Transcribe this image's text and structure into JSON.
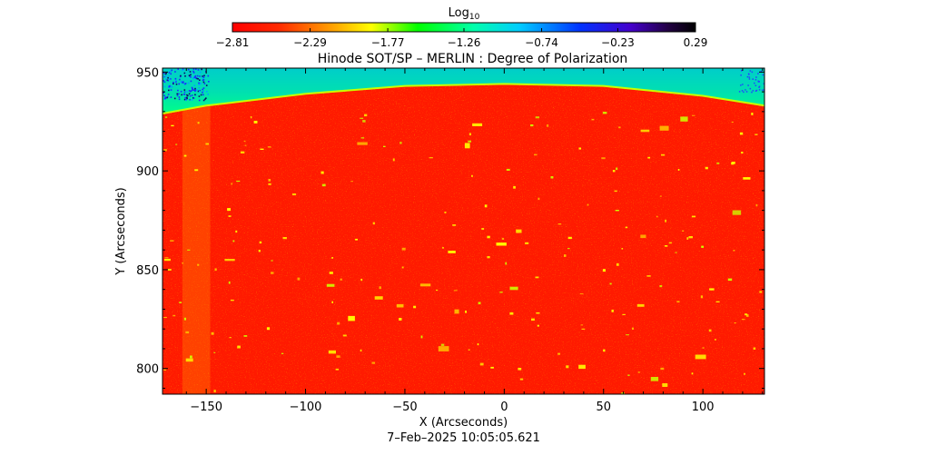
{
  "chart_data": {
    "type": "heatmap",
    "title": "Hinode SOT/SP – MERLIN : Degree of Polarization",
    "xlabel": "X (Arcseconds)",
    "ylabel": "Y (Arcseconds)",
    "xlim": [
      -172,
      131
    ],
    "ylim": [
      787,
      952
    ],
    "xticks": [
      -150,
      -100,
      -50,
      0,
      50,
      100
    ],
    "yticks": [
      800,
      850,
      900,
      950
    ],
    "xtick_labels": [
      "−150",
      "−100",
      "−50",
      "0",
      "50",
      "100"
    ],
    "ytick_labels": [
      "800",
      "850",
      "900",
      "950"
    ],
    "colorbar": {
      "title": "Log",
      "title_subscript": "10",
      "min": -2.81,
      "max": 0.29,
      "ticks": [
        -2.81,
        -2.29,
        -1.77,
        -1.26,
        -0.74,
        -0.23,
        0.29
      ],
      "tick_labels": [
        "−2.81",
        "−2.29",
        "−1.77",
        "−1.26",
        "−0.74",
        "−0.23",
        "0.29"
      ],
      "colormap": "rainbow",
      "placement": "top"
    },
    "timestamp": "7–Feb–2025 10:05:05.621",
    "limb": {
      "description": "solar limb arc",
      "y_at_x": [
        [
          -172,
          929
        ],
        [
          -150,
          933
        ],
        [
          -100,
          939
        ],
        [
          -50,
          943
        ],
        [
          0,
          944
        ],
        [
          50,
          943
        ],
        [
          100,
          938
        ],
        [
          131,
          933
        ]
      ]
    },
    "value_levels": {
      "disk_background": -2.81,
      "above_limb": -1.3,
      "limb_edge": -1.9,
      "outer_corner": -0.4
    }
  }
}
